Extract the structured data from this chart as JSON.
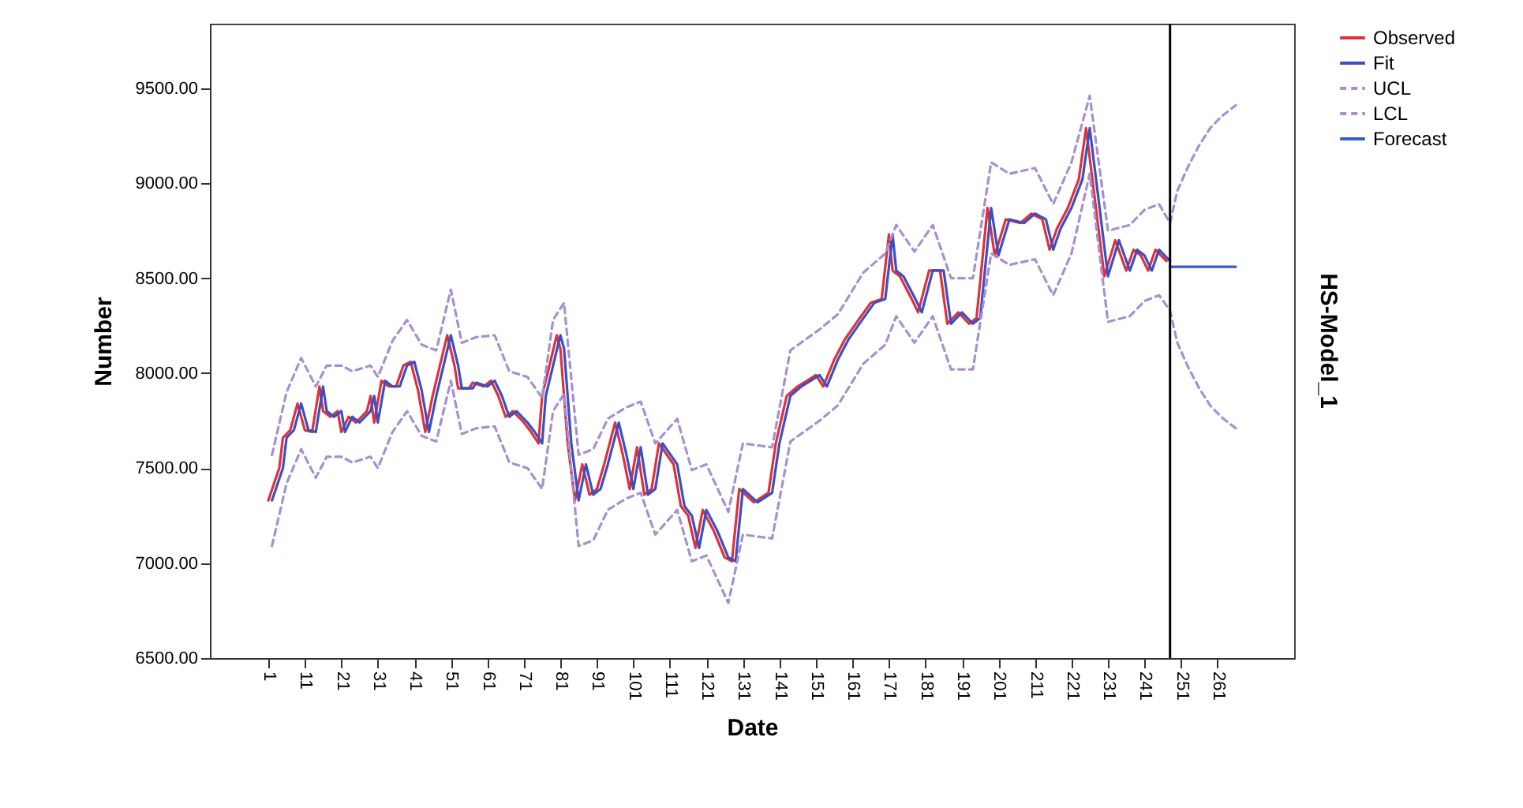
{
  "chart_data": {
    "type": "line",
    "xlabel": "Date",
    "ylabel": "Number",
    "annotations": [
      "HS-Model_1"
    ],
    "xlim": [
      -15,
      282
    ],
    "xticks": [
      1,
      11,
      21,
      31,
      41,
      51,
      61,
      71,
      81,
      91,
      101,
      111,
      121,
      131,
      141,
      151,
      161,
      171,
      181,
      191,
      201,
      211,
      221,
      231,
      241,
      251,
      261
    ],
    "ylim": [
      6500,
      9840
    ],
    "yticks": [
      {
        "value": 6500,
        "label": "6500.00"
      },
      {
        "value": 7000,
        "label": "7000.00"
      },
      {
        "value": 7500,
        "label": "7500.00"
      },
      {
        "value": 8000,
        "label": "8000.00"
      },
      {
        "value": 8500,
        "label": "8500.00"
      },
      {
        "value": 9000,
        "label": "9000.00"
      },
      {
        "value": 9500,
        "label": "9500.00"
      }
    ],
    "grid": false,
    "legend": "top right",
    "marker": "none",
    "ref_lines": [
      {
        "axis": "x",
        "value": 248,
        "color": "#000000"
      }
    ],
    "series": [
      {
        "name": "Observed",
        "color": "#e0303a",
        "line_style": "solid",
        "x": [
          1,
          4,
          5,
          7,
          9,
          11,
          13,
          15,
          16,
          18,
          20,
          21,
          23,
          25,
          28,
          29,
          30,
          32,
          34,
          36,
          38,
          40,
          42,
          44,
          46,
          48,
          50,
          52,
          53,
          56,
          57,
          60,
          62,
          64,
          66,
          68,
          71,
          73,
          75,
          76,
          78,
          80,
          81,
          83,
          85,
          87,
          89,
          91,
          93,
          96,
          98,
          100,
          102,
          104,
          106,
          108,
          112,
          114,
          116,
          118,
          120,
          123,
          126,
          128,
          130,
          134,
          138,
          140,
          143,
          146,
          151,
          153,
          156,
          159,
          163,
          166,
          169,
          171,
          172,
          174,
          177,
          179,
          182,
          185,
          187,
          190,
          193,
          195,
          198,
          200,
          203,
          207,
          210,
          213,
          215,
          217,
          220,
          223,
          225,
          227,
          230,
          233,
          236,
          238,
          240,
          242,
          244,
          247
        ],
        "values": [
          7330,
          7500,
          7660,
          7700,
          7840,
          7700,
          7690,
          7930,
          7800,
          7770,
          7800,
          7690,
          7770,
          7740,
          7800,
          7880,
          7740,
          7960,
          7930,
          7930,
          8040,
          8060,
          7910,
          7690,
          7880,
          8040,
          8200,
          8040,
          7920,
          7920,
          7950,
          7930,
          7960,
          7880,
          7770,
          7800,
          7740,
          7690,
          7630,
          7880,
          8040,
          8200,
          8130,
          7630,
          7330,
          7520,
          7360,
          7390,
          7520,
          7740,
          7580,
          7390,
          7610,
          7360,
          7390,
          7630,
          7520,
          7300,
          7250,
          7080,
          7280,
          7170,
          7030,
          7010,
          7390,
          7320,
          7370,
          7630,
          7880,
          7930,
          7990,
          7930,
          8070,
          8180,
          8290,
          8370,
          8390,
          8730,
          8540,
          8510,
          8400,
          8320,
          8540,
          8540,
          8260,
          8320,
          8260,
          8290,
          8870,
          8620,
          8810,
          8790,
          8840,
          8810,
          8650,
          8760,
          8870,
          9020,
          9290,
          8980,
          8510,
          8700,
          8540,
          8650,
          8620,
          8540,
          8650,
          8590
        ]
      },
      {
        "name": "Fit",
        "color": "#3b4fc4",
        "line_style": "solid",
        "x": [
          2,
          5,
          6,
          8,
          10,
          12,
          14,
          16,
          17,
          19,
          21,
          22,
          24,
          26,
          29,
          30,
          31,
          33,
          35,
          37,
          39,
          41,
          43,
          45,
          47,
          49,
          51,
          53,
          54,
          57,
          58,
          61,
          63,
          65,
          67,
          69,
          72,
          74,
          76,
          77,
          79,
          81,
          82,
          84,
          86,
          88,
          90,
          92,
          94,
          97,
          99,
          101,
          103,
          105,
          107,
          109,
          113,
          115,
          117,
          119,
          121,
          124,
          127,
          129,
          131,
          135,
          139,
          141,
          144,
          147,
          152,
          154,
          157,
          160,
          164,
          167,
          170,
          172,
          173,
          175,
          178,
          180,
          183,
          186,
          188,
          191,
          194,
          196,
          199,
          201,
          204,
          208,
          211,
          214,
          216,
          218,
          221,
          224,
          226,
          228,
          231,
          234,
          237,
          239,
          241,
          243,
          245,
          248
        ],
        "values": [
          7330,
          7500,
          7660,
          7700,
          7840,
          7700,
          7690,
          7930,
          7800,
          7770,
          7800,
          7690,
          7770,
          7740,
          7800,
          7880,
          7740,
          7960,
          7930,
          7930,
          8040,
          8060,
          7910,
          7690,
          7880,
          8040,
          8200,
          8040,
          7920,
          7920,
          7950,
          7930,
          7960,
          7880,
          7770,
          7800,
          7740,
          7690,
          7630,
          7880,
          8040,
          8200,
          8130,
          7630,
          7330,
          7520,
          7360,
          7390,
          7520,
          7740,
          7580,
          7390,
          7610,
          7360,
          7390,
          7630,
          7520,
          7300,
          7250,
          7080,
          7280,
          7170,
          7030,
          7010,
          7390,
          7320,
          7370,
          7630,
          7880,
          7930,
          7990,
          7930,
          8070,
          8180,
          8290,
          8370,
          8390,
          8730,
          8540,
          8510,
          8400,
          8320,
          8540,
          8540,
          8260,
          8320,
          8260,
          8290,
          8870,
          8620,
          8810,
          8790,
          8840,
          8810,
          8650,
          8760,
          8870,
          9020,
          9290,
          8980,
          8510,
          8700,
          8540,
          8650,
          8620,
          8540,
          8650,
          8590
        ]
      },
      {
        "name": "UCL",
        "color": "#a890d0",
        "line_style": "dashed",
        "x": [
          2,
          6,
          10,
          14,
          17,
          21,
          24,
          29,
          31,
          35,
          39,
          43,
          47,
          51,
          54,
          58,
          63,
          67,
          72,
          76,
          79,
          82,
          86,
          90,
          94,
          99,
          103,
          107,
          113,
          117,
          121,
          127,
          131,
          139,
          144,
          152,
          157,
          164,
          170,
          173,
          178,
          183,
          188,
          194,
          199,
          204,
          211,
          216,
          221,
          226,
          231,
          237,
          241,
          245,
          248,
          250,
          253,
          256,
          259,
          262,
          266
        ],
        "values": [
          7570,
          7900,
          8080,
          7930,
          8040,
          8040,
          8010,
          8040,
          7980,
          8170,
          8280,
          8150,
          8120,
          8440,
          8160,
          8190,
          8200,
          8010,
          7980,
          7870,
          8280,
          8370,
          7570,
          7600,
          7760,
          7820,
          7850,
          7630,
          7760,
          7490,
          7520,
          7270,
          7630,
          7610,
          8120,
          8230,
          8310,
          8530,
          8630,
          8780,
          8640,
          8780,
          8500,
          8500,
          9110,
          9050,
          9080,
          8890,
          9110,
          9460,
          8750,
          8780,
          8860,
          8890,
          8790,
          8960,
          9090,
          9200,
          9290,
          9350,
          9410
        ]
      },
      {
        "name": "LCL",
        "color": "#a890d0",
        "line_style": "dashed",
        "x": [
          2,
          6,
          10,
          14,
          17,
          21,
          24,
          29,
          31,
          35,
          39,
          43,
          47,
          51,
          54,
          58,
          63,
          67,
          72,
          76,
          79,
          82,
          86,
          90,
          94,
          99,
          103,
          107,
          113,
          117,
          121,
          127,
          131,
          139,
          144,
          152,
          157,
          164,
          170,
          173,
          178,
          183,
          188,
          194,
          199,
          204,
          211,
          216,
          221,
          226,
          231,
          237,
          241,
          245,
          248,
          250,
          253,
          256,
          259,
          262,
          266
        ],
        "values": [
          7090,
          7420,
          7600,
          7450,
          7560,
          7560,
          7530,
          7560,
          7500,
          7690,
          7800,
          7670,
          7640,
          7960,
          7680,
          7710,
          7720,
          7530,
          7500,
          7390,
          7800,
          7890,
          7090,
          7120,
          7280,
          7340,
          7370,
          7150,
          7280,
          7010,
          7040,
          6790,
          7150,
          7130,
          7640,
          7750,
          7830,
          8050,
          8150,
          8300,
          8160,
          8300,
          8020,
          8020,
          8630,
          8570,
          8600,
          8410,
          8630,
          9050,
          8270,
          8300,
          8380,
          8410,
          8330,
          8160,
          8030,
          7920,
          7830,
          7770,
          7710
        ]
      },
      {
        "name": "Forecast",
        "color": "#3a5bc7",
        "line_style": "solid",
        "x": [
          248,
          266
        ],
        "values": [
          8560,
          8560
        ]
      }
    ]
  }
}
